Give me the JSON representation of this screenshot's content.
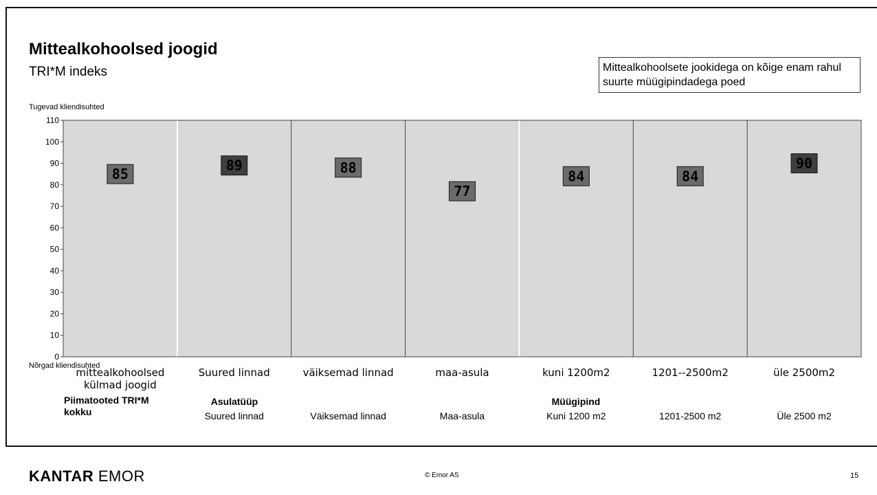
{
  "title": "Mittealkohoolsed joogid",
  "subtitle": "TRI*M indeks",
  "callout": "Mittealkohoolsete jookidega on kõige enam rahul suurte müügipindadega poed",
  "axis_top_label": "Tugevad kliendisuhted",
  "axis_bottom_label": "Nõrgad kliendisuhted",
  "group_labels": {
    "total_line1": "Piimatooted TRI*M",
    "total_line2": "kokku",
    "settlement": "Asulatüüp",
    "sales_area": "Müügipind"
  },
  "sub_labels": [
    "Suured linnad",
    "Väiksemad linnad",
    "Maa-asula",
    "Kuni 1200 m2",
    "1201-2500 m2",
    "Üle 2500 m2"
  ],
  "footer": {
    "logo_bold": "KANTAR",
    "logo_rest": "EMOR",
    "copyright": "© Emor AS",
    "page": "15"
  },
  "colors": {
    "panel": "#d9d9d9",
    "marker": "#6b6b6b",
    "marker_dark": "#3f3f3f"
  },
  "chart_data": {
    "type": "scatter",
    "categories": [
      "mittealkohoolsed külmad joogid",
      "Suured linnad",
      "väiksemad linnad",
      "maa-asula",
      "kuni 1200m2",
      "1201--2500m2",
      "üle 2500m2"
    ],
    "category_lines": [
      [
        "mittealkohoolsed",
        "külmad joogid"
      ],
      [
        "Suured linnad"
      ],
      [
        "väiksemad linnad"
      ],
      [
        "maa-asula"
      ],
      [
        "kuni 1200m2"
      ],
      [
        "1201--2500m2"
      ],
      [
        "üle 2500m2"
      ]
    ],
    "values": [
      85,
      89,
      88,
      77,
      84,
      84,
      90
    ],
    "ylim": [
      0,
      110
    ],
    "yticks": [
      0,
      10,
      20,
      30,
      40,
      50,
      60,
      70,
      80,
      90,
      100,
      110
    ],
    "data_labels": true,
    "grid": false
  }
}
